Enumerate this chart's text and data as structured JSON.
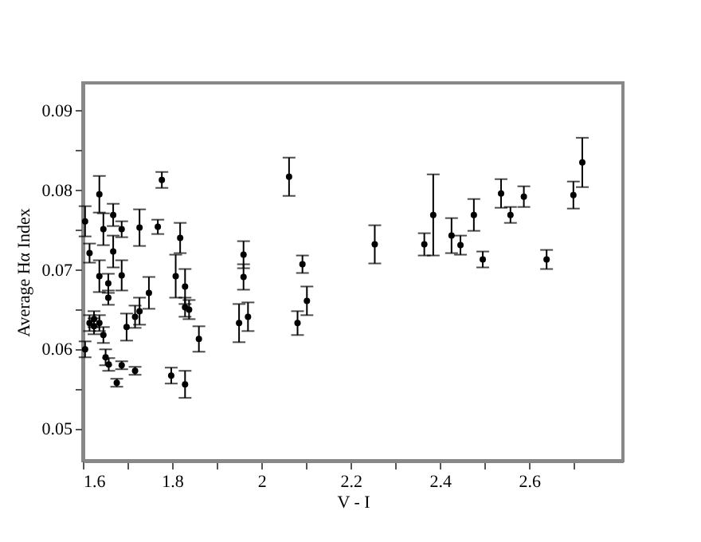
{
  "chart_data": {
    "type": "scatter",
    "xlabel": "V - I",
    "ylabel": "Average Hα Index",
    "marker": "circle",
    "grid": false,
    "xlim": [
      1.6,
      2.81
    ],
    "ylim": [
      0.046,
      0.0935
    ],
    "xticks": [
      {
        "value": 1.6,
        "label": "1.6"
      },
      {
        "value": 1.7,
        "label": null
      },
      {
        "value": 1.8,
        "label": "1.8"
      },
      {
        "value": 1.9,
        "label": null
      },
      {
        "value": 2,
        "label": "2"
      },
      {
        "value": 2.1,
        "label": null
      },
      {
        "value": 2.2,
        "label": "2.2"
      },
      {
        "value": 2.3,
        "label": null
      },
      {
        "value": 2.4,
        "label": "2.4"
      },
      {
        "value": 2.5,
        "label": null
      },
      {
        "value": 2.6,
        "label": "2.6"
      },
      {
        "value": 2.7,
        "label": null
      }
    ],
    "yticks": [
      {
        "value": 0.05,
        "label": "0.05"
      },
      {
        "value": 0.055,
        "label": null
      },
      {
        "value": 0.06,
        "label": "0.06"
      },
      {
        "value": 0.065,
        "label": null
      },
      {
        "value": 0.07,
        "label": "0.07"
      },
      {
        "value": 0.075,
        "label": null
      },
      {
        "value": 0.08,
        "label": "0.08"
      },
      {
        "value": 0.085,
        "label": null
      },
      {
        "value": 0.09,
        "label": "0.09"
      }
    ],
    "series": [
      {
        "color": "#000000",
        "x": [
          1.605,
          1.615,
          1.605,
          1.615,
          1.625,
          1.625,
          1.637,
          1.637,
          1.637,
          1.646,
          1.646,
          1.651,
          1.657,
          1.657,
          1.658,
          1.668,
          1.668,
          1.676,
          1.687,
          1.687,
          1.687,
          1.698,
          1.717,
          1.717,
          1.727,
          1.727,
          1.748,
          1.768,
          1.777,
          1.798,
          1.808,
          1.818,
          1.829,
          1.829,
          1.829,
          1.838,
          1.86,
          1.95,
          1.96,
          1.96,
          1.97,
          2.062,
          2.081,
          2.092,
          2.102,
          2.254,
          2.365,
          2.385,
          2.426,
          2.446,
          2.476,
          2.496,
          2.537,
          2.558,
          2.588,
          2.639,
          2.699,
          2.719
        ],
        "values": [
          0.0761,
          0.0721,
          0.06,
          0.0633,
          0.0638,
          0.0629,
          0.0795,
          0.0692,
          0.0633,
          0.0751,
          0.0618,
          0.059,
          0.0683,
          0.0665,
          0.0581,
          0.0769,
          0.0723,
          0.0558,
          0.0751,
          0.0693,
          0.058,
          0.0628,
          0.0573,
          0.0641,
          0.0753,
          0.0648,
          0.0671,
          0.0754,
          0.0813,
          0.0567,
          0.0692,
          0.074,
          0.0679,
          0.0653,
          0.0556,
          0.065,
          0.0613,
          0.0633,
          0.0719,
          0.0691,
          0.0641,
          0.0817,
          0.0633,
          0.0707,
          0.0661,
          0.0732,
          0.0732,
          0.0769,
          0.0743,
          0.0731,
          0.0769,
          0.0713,
          0.0796,
          0.0769,
          0.0792,
          0.0713,
          0.0794,
          0.0835
        ],
        "errors": [
          0.0019,
          0.0012,
          0.001,
          0.001,
          0.001,
          0.001,
          0.0023,
          0.002,
          0.001,
          0.002,
          0.001,
          0.001,
          0.0012,
          0.0009,
          0.0008,
          0.0014,
          0.002,
          0.0005,
          0.001,
          0.0019,
          0.0005,
          0.0017,
          0.0005,
          0.0014,
          0.0023,
          0.0017,
          0.002,
          0.0009,
          0.001,
          0.001,
          0.0027,
          0.0019,
          0.0022,
          0.0012,
          0.0017,
          0.0012,
          0.0016,
          0.0024,
          0.0017,
          0.0016,
          0.0018,
          0.0024,
          0.0015,
          0.0011,
          0.0018,
          0.0024,
          0.0014,
          0.0051,
          0.0022,
          0.0012,
          0.002,
          0.001,
          0.0018,
          0.001,
          0.0013,
          0.0012,
          0.0017,
          0.0031
        ]
      }
    ]
  }
}
